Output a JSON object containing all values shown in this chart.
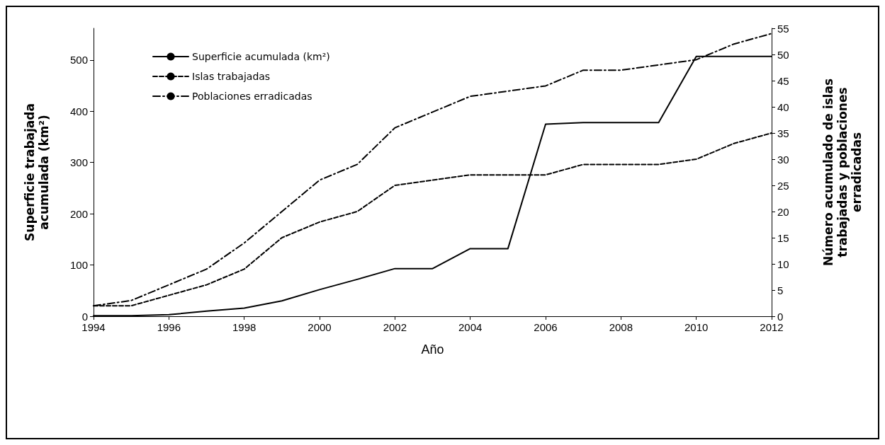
{
  "chart_data": {
    "type": "line",
    "xlabel": "Año",
    "ylabel": "Superficie trabajada\nacumulada (km²)",
    "y2label": "Número acumulado de islas\ntrabajadas y poblaciones\nerradicadas",
    "x": [
      1994,
      1995,
      1996,
      1997,
      1998,
      1999,
      2000,
      2001,
      2002,
      2003,
      2004,
      2005,
      2006,
      2007,
      2008,
      2009,
      2010,
      2011,
      2012
    ],
    "series": [
      {
        "name": "Superficie acumulada (km²)",
        "color": "#000000",
        "line_style": "solid",
        "values": [
          1,
          1,
          3,
          10,
          16,
          30,
          52,
          72,
          93,
          93,
          132,
          132,
          375,
          378,
          378,
          378,
          507,
          507,
          507
        ]
      },
      {
        "name": "Islas trabajadas",
        "color": "#000000",
        "line_style": "dashed",
        "axis": "y2",
        "values": [
          2,
          2,
          4,
          6,
          9,
          15,
          18,
          20,
          25,
          26,
          27,
          27,
          27,
          29,
          29,
          29,
          30,
          33,
          35
        ]
      },
      {
        "name": "Poblaciones erradicadas",
        "color": "#000000",
        "line_style": "dashdot",
        "axis": "y2",
        "values": [
          2,
          3,
          6,
          9,
          14,
          20,
          26,
          29,
          36,
          39,
          42,
          43,
          44,
          47,
          47,
          48,
          49,
          52,
          54
        ]
      }
    ],
    "xlim": [
      1994,
      2012
    ],
    "xticks": [
      1994,
      1996,
      1998,
      2000,
      2002,
      2004,
      2006,
      2008,
      2010,
      2012
    ],
    "ylim": [
      0,
      562
    ],
    "yticks": [
      0,
      100,
      200,
      300,
      400,
      500
    ],
    "y2lim": [
      0,
      55
    ],
    "y2ticks": [
      0,
      5,
      10,
      15,
      20,
      25,
      30,
      35,
      40,
      45,
      50,
      55
    ],
    "grid": false,
    "legend": "top left",
    "marker": "none"
  }
}
